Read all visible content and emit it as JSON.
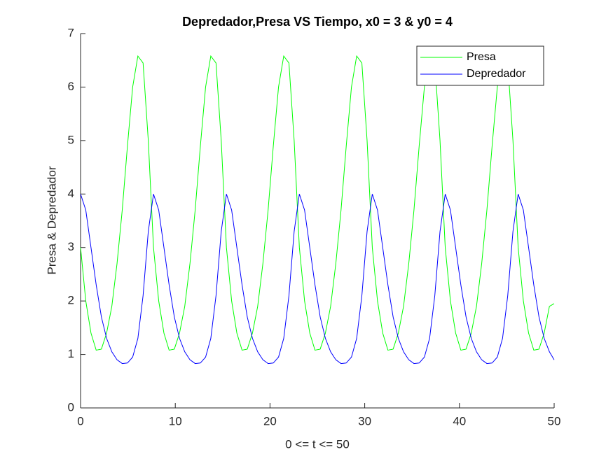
{
  "chart_data": {
    "type": "line",
    "title": "Depredador,Presa VS Tiempo, x0 = 3 & y0 = 4",
    "xlabel": "0 <= t <= 50",
    "ylabel": "Presa & Depredador",
    "x": [
      0,
      0.55,
      1.1,
      1.65,
      2.2,
      2.75,
      3.3,
      3.85,
      4.4,
      4.95,
      5.5,
      6.05,
      6.6,
      7.15,
      7.7,
      8.25,
      8.8,
      9.35,
      9.9,
      10.45,
      11,
      11.55,
      12.1,
      12.65,
      13.2,
      13.75,
      14.3,
      14.85,
      15.4,
      15.95,
      16.5,
      17.05,
      17.6,
      18.15,
      18.7,
      19.25,
      19.8,
      20.35,
      20.9,
      21.45,
      22,
      22.55,
      23.1,
      23.65,
      24.2,
      24.75,
      25.3,
      25.85,
      26.4,
      26.95,
      27.5,
      28.05,
      28.6,
      29.15,
      29.7,
      30.25,
      30.8,
      31.35,
      31.9,
      32.45,
      33,
      33.55,
      34.1,
      34.65,
      35.2,
      35.75,
      36.3,
      36.85,
      37.4,
      37.95,
      38.5,
      39.05,
      39.6,
      40.15,
      40.7,
      41.25,
      41.8,
      42.35,
      42.9,
      43.45,
      44,
      44.55,
      45.1,
      45.65,
      46.2,
      46.75,
      47.3,
      47.85,
      48.4,
      48.95,
      49.5,
      50
    ],
    "series": [
      {
        "name": "Presa",
        "color": "#00ff00",
        "values": [
          3.0,
          2.0,
          1.4,
          1.08,
          1.1,
          1.4,
          1.9,
          2.7,
          3.7,
          4.9,
          6.0,
          6.58,
          6.45,
          5.0,
          3.0,
          2.0,
          1.4,
          1.08,
          1.1,
          1.4,
          1.9,
          2.7,
          3.7,
          4.9,
          6.0,
          6.58,
          6.45,
          5.0,
          3.0,
          2.0,
          1.4,
          1.08,
          1.1,
          1.4,
          1.9,
          2.7,
          3.7,
          4.9,
          6.0,
          6.58,
          6.45,
          5.0,
          3.0,
          2.0,
          1.4,
          1.08,
          1.1,
          1.4,
          1.9,
          2.7,
          3.7,
          4.9,
          6.0,
          6.58,
          6.45,
          5.0,
          3.0,
          2.0,
          1.4,
          1.08,
          1.1,
          1.4,
          1.9,
          2.7,
          3.7,
          4.9,
          6.0,
          6.58,
          6.45,
          5.0,
          3.0,
          2.0,
          1.4,
          1.08,
          1.1,
          1.4,
          1.9,
          2.7,
          3.7,
          4.9,
          6.0,
          6.58,
          6.45,
          5.0,
          3.0,
          2.0,
          1.4,
          1.08,
          1.1,
          1.4,
          1.9,
          1.95
        ]
      },
      {
        "name": "Depredador",
        "color": "#0000ff",
        "values": [
          4.0,
          3.7,
          3.0,
          2.3,
          1.7,
          1.3,
          1.05,
          0.9,
          0.83,
          0.84,
          0.95,
          1.3,
          2.1,
          3.3,
          4.0,
          3.7,
          3.0,
          2.3,
          1.7,
          1.3,
          1.05,
          0.9,
          0.83,
          0.84,
          0.95,
          1.3,
          2.1,
          3.3,
          4.0,
          3.7,
          3.0,
          2.3,
          1.7,
          1.3,
          1.05,
          0.9,
          0.83,
          0.84,
          0.95,
          1.3,
          2.1,
          3.3,
          4.0,
          3.7,
          3.0,
          2.3,
          1.7,
          1.3,
          1.05,
          0.9,
          0.83,
          0.84,
          0.95,
          1.3,
          2.1,
          3.3,
          4.0,
          3.7,
          3.0,
          2.3,
          1.7,
          1.3,
          1.05,
          0.9,
          0.83,
          0.84,
          0.95,
          1.3,
          2.1,
          3.3,
          4.0,
          3.7,
          3.0,
          2.3,
          1.7,
          1.3,
          1.05,
          0.9,
          0.83,
          0.84,
          0.95,
          1.3,
          2.1,
          3.3,
          4.0,
          3.7,
          3.0,
          2.3,
          1.7,
          1.3,
          1.05,
          0.9
        ]
      }
    ],
    "xlim": [
      0,
      50
    ],
    "xticks": [
      0,
      10,
      20,
      30,
      40,
      50
    ],
    "ylim": [
      0,
      7
    ],
    "yticks": [
      0,
      1,
      2,
      3,
      4,
      5,
      6,
      7
    ],
    "legend": "upper right"
  }
}
